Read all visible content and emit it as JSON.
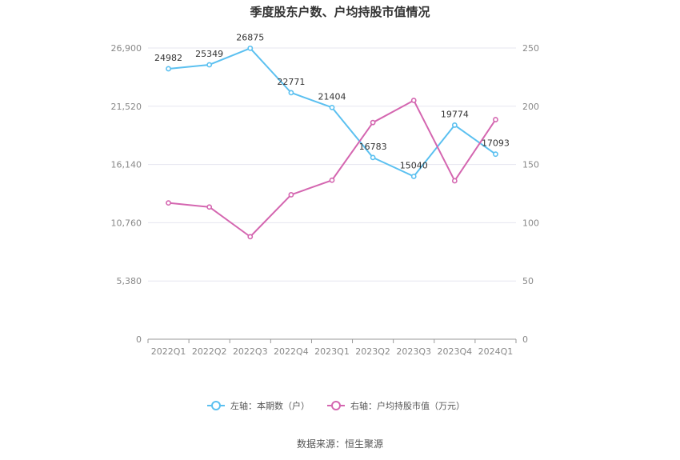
{
  "title": "季度股东户数、户均持股市值情况",
  "source": "数据来源：恒生聚源",
  "colors": {
    "left_series": "#5bc0f0",
    "right_series": "#d466b0",
    "grid": "#e6e6ef",
    "axis": "#999999"
  },
  "chart_data": {
    "type": "line",
    "categories": [
      "2022Q1",
      "2022Q2",
      "2022Q3",
      "2022Q4",
      "2023Q1",
      "2023Q2",
      "2023Q3",
      "2023Q4",
      "2024Q1"
    ],
    "series": [
      {
        "name": "左轴：本期数（户）",
        "axis": "left",
        "values": [
          24982,
          25349,
          26875,
          22771,
          21404,
          16783,
          15040,
          19774,
          17093
        ],
        "labels": [
          "24982",
          "25349",
          "26875",
          "22771",
          "21404",
          "16783",
          "15040",
          "19774",
          "17093"
        ]
      },
      {
        "name": "右轴：户均持股市值（万元）",
        "axis": "right",
        "values": [
          117,
          113.5,
          88,
          124,
          136.5,
          186,
          205,
          136,
          188.5
        ]
      }
    ],
    "left_axis": {
      "ylim": [
        0,
        26900
      ],
      "ticks": [
        "0",
        "5,380",
        "10,760",
        "16,140",
        "21,520",
        "26,900"
      ]
    },
    "right_axis": {
      "ylim": [
        0,
        250
      ],
      "ticks": [
        "0",
        "50",
        "100",
        "150",
        "200",
        "250"
      ]
    },
    "grid": true,
    "legend": "bottom"
  }
}
